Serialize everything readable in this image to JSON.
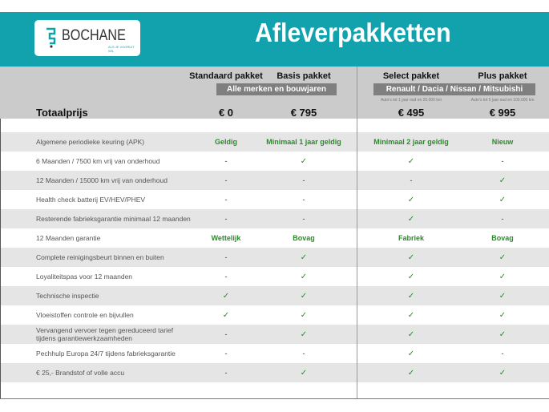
{
  "logo": {
    "name": "BOCHANE",
    "tagline": "ALS JE VOORUIT WIL"
  },
  "title": "Afleverpakketten",
  "colors": {
    "brand": "#12a2ae",
    "check": "#2a8a2a",
    "header_gray": "#cbcbcb"
  },
  "packages": [
    {
      "name": "Standaard pakket",
      "price": "€ 0"
    },
    {
      "name": "Basis pakket",
      "price": "€ 795"
    },
    {
      "name": "Select pakket",
      "price": "€ 495",
      "note": "Auto's tot 1 jaar oud en 20.000 km"
    },
    {
      "name": "Plus pakket",
      "price": "€ 995",
      "note": "Auto's tot 5 jaar oud en 100.000 km"
    }
  ],
  "banners": {
    "left": "Alle merken en bouwjaren",
    "right": "Renault / Dacia / Nissan / Mitsubishi"
  },
  "total_label": "Totaalprijs",
  "rows": [
    {
      "label": "Algemene periodieke keuring (APK)",
      "values": [
        "Geldig",
        "Minimaal 1 jaar geldig",
        "Minimaal 2 jaar geldig",
        "Nieuw"
      ]
    },
    {
      "label": "6 Maanden / 7500 km vrij van onderhoud",
      "values": [
        "-",
        "✓",
        "✓",
        "-"
      ]
    },
    {
      "label": "12 Maanden / 15000 km vrij van onderhoud",
      "values": [
        "-",
        "-",
        "-",
        "✓"
      ]
    },
    {
      "label": "Health check batterij EV/HEV/PHEV",
      "values": [
        "-",
        "-",
        "✓",
        "✓"
      ]
    },
    {
      "label": "Resterende fabrieksgarantie minimaal 12 maanden",
      "values": [
        "-",
        "-",
        "✓",
        "-"
      ]
    },
    {
      "label": "12 Maanden  garantie",
      "values": [
        "Wettelijk",
        "Bovag",
        "Fabriek",
        "Bovag"
      ]
    },
    {
      "label": "Complete reinigingsbeurt binnen en buiten",
      "values": [
        "-",
        "✓",
        "✓",
        "✓"
      ]
    },
    {
      "label": "Loyaliteitspas voor 12 maanden",
      "values": [
        "-",
        "✓",
        "✓",
        "✓"
      ]
    },
    {
      "label": "Technische inspectie",
      "values": [
        "✓",
        "✓",
        "✓",
        "✓"
      ]
    },
    {
      "label": "Vloeistoffen controle en bijvullen",
      "values": [
        "✓",
        "✓",
        "✓",
        "✓"
      ]
    },
    {
      "label": "Vervangend vervoer tegen gereduceerd tarief tijdens garantiewerkzaamheden",
      "values": [
        "-",
        "✓",
        "✓",
        "✓"
      ]
    },
    {
      "label": "Pechhulp Europa 24/7 tijdens fabrieksgarantie",
      "values": [
        "-",
        "-",
        "✓",
        "-"
      ]
    },
    {
      "label": "€ 25,- Brandstof of  volle accu",
      "values": [
        "-",
        "✓",
        "✓",
        "✓"
      ]
    }
  ]
}
